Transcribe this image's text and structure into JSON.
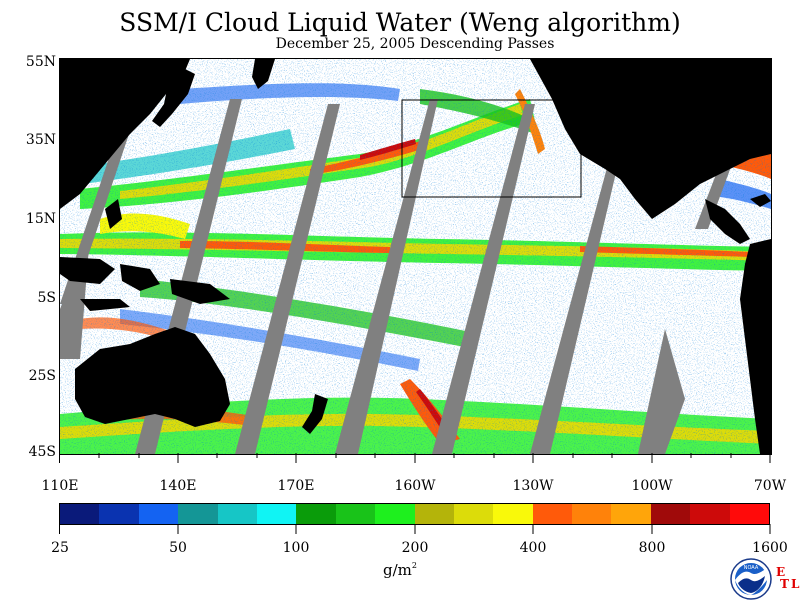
{
  "title": "SSM/I Cloud Liquid Water (Weng algorithm)",
  "subtitle": "December 25, 2005  Descending Passes",
  "lat_labels": [
    "55N",
    "35N",
    "15N",
    "5S",
    "25S",
    "45S"
  ],
  "lon_labels": [
    "110E",
    "140E",
    "170E",
    "160W",
    "130W",
    "100W",
    "70W"
  ],
  "colorbar": {
    "colors": [
      "#0a1a7a",
      "#0a33b0",
      "#1463f2",
      "#149696",
      "#16c6c6",
      "#10f4f4",
      "#0a9c0a",
      "#19c319",
      "#1ef01e",
      "#b4b40a",
      "#dcdc0a",
      "#f9f90a",
      "#ff5a0a",
      "#ff820a",
      "#ffa50a",
      "#a00a0a",
      "#cd0a0a",
      "#ff0a0a"
    ],
    "tick_labels": [
      "25",
      "50",
      "100",
      "200",
      "400",
      "800",
      "1600"
    ],
    "unit": "g/m²",
    "unit_base": "g/m",
    "unit_sup": "2"
  },
  "map": {
    "land_color": "#000000",
    "no_data_color": "#808080",
    "ocean_clear_color": "#ffffff"
  },
  "logo": {
    "icon": "noaa-logo-icon",
    "text": "NOAA",
    "lab_letters": [
      "E",
      "T",
      "L"
    ]
  }
}
